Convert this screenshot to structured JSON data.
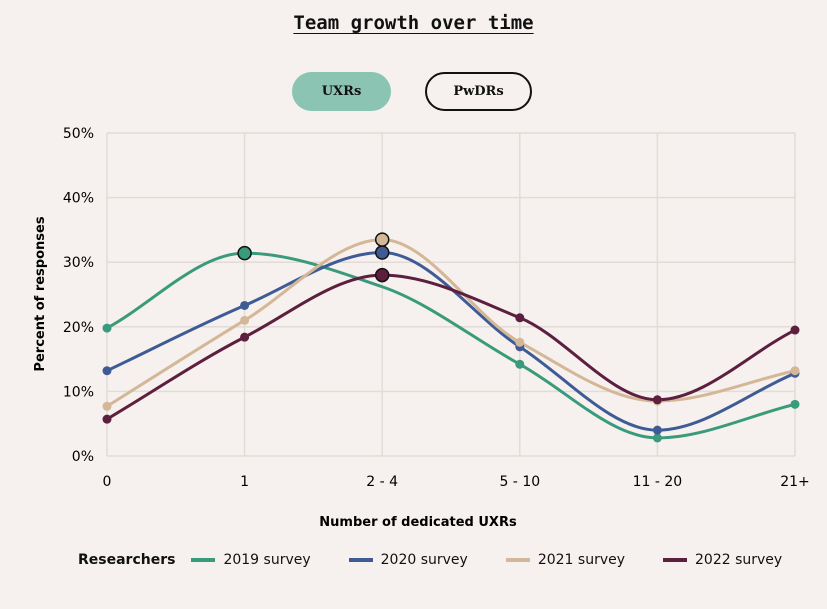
{
  "chart_data": {
    "type": "line",
    "title": "Team growth over time",
    "toggle": {
      "options": [
        "UXRs",
        "PwDRs"
      ],
      "selected": "UXRs"
    },
    "xlabel": "Number of dedicated UXRs",
    "ylabel": "Percent of responses",
    "categories": [
      "0",
      "1",
      "2 - 4",
      "5 - 10",
      "11 - 20",
      "21+"
    ],
    "yticks": [
      "0%",
      "10%",
      "20%",
      "30%",
      "40%",
      "50%"
    ],
    "ylim": [
      0,
      50
    ],
    "grid": true,
    "legend_title": "Researchers",
    "legend_position": "bottom",
    "series": [
      {
        "name": "2019 survey",
        "color": "#3a9a7c",
        "values": [
          19.8,
          31.4,
          26.2,
          14.2,
          2.8,
          8.0
        ]
      },
      {
        "name": "2020 survey",
        "color": "#3f5b96",
        "values": [
          13.2,
          23.3,
          31.5,
          16.9,
          4.0,
          12.8
        ]
      },
      {
        "name": "2021 survey",
        "color": "#d4b797",
        "values": [
          7.7,
          21.0,
          33.5,
          17.6,
          8.5,
          13.2
        ]
      },
      {
        "name": "2022 survey",
        "color": "#5c1f3e",
        "values": [
          5.7,
          18.4,
          28.0,
          21.4,
          8.7,
          19.5
        ]
      }
    ]
  }
}
